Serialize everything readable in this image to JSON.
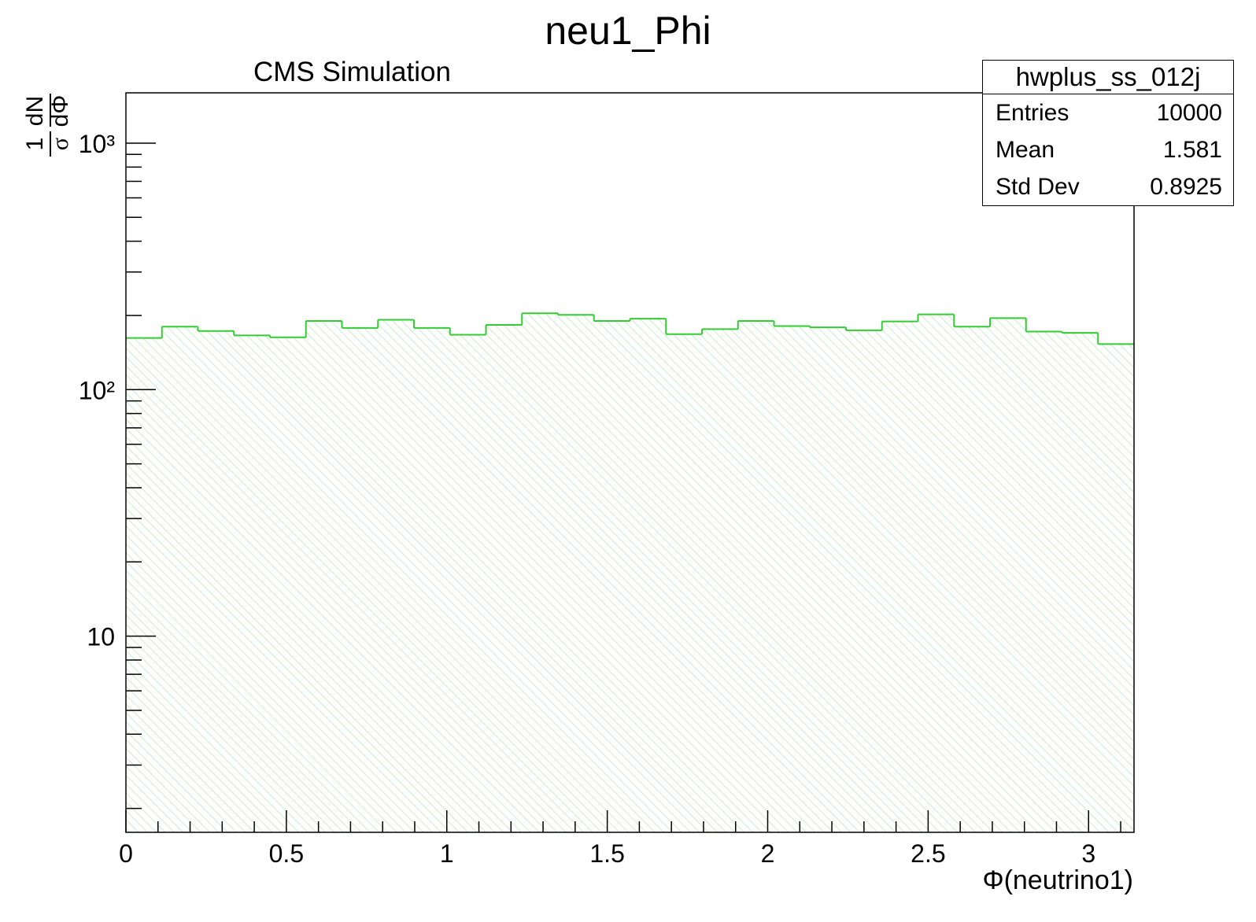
{
  "title": "neu1_Phi",
  "subtitle": "CMS Simulation",
  "stats": {
    "name": "hwplus_ss_012j",
    "rows": [
      {
        "label": "Entries",
        "value": "10000"
      },
      {
        "label": "Mean",
        "value": "1.581"
      },
      {
        "label": "Std Dev",
        "value": "0.8925"
      }
    ]
  },
  "colors": {
    "line": "#33cc33",
    "hatch": "#b8e8b8",
    "axis": "#000000"
  },
  "chart_data": {
    "type": "histogram",
    "xlabel": "Φ(neutrino1)",
    "ylabel": "1/σ dN/dΦ",
    "ylabel_parts": {
      "num_left": "1",
      "den_left": "σ",
      "num_right": "dN",
      "den_right": "dΦ"
    },
    "xlim": [
      0,
      3.1416
    ],
    "ylim": [
      1.6,
      1600
    ],
    "yscale": "log",
    "x_ticks": [
      0,
      0.5,
      1,
      1.5,
      2,
      2.5,
      3
    ],
    "x_tick_labels": [
      "0",
      "0.5",
      "1",
      "1.5",
      "2",
      "2.5",
      "3"
    ],
    "y_major_ticks": [
      10,
      100,
      1000
    ],
    "y_tick_labels": [
      "10",
      "10²",
      "10³"
    ],
    "bin_edges": [
      0,
      0.1122,
      0.2244,
      0.3366,
      0.4488,
      0.561,
      0.6732,
      0.7854,
      0.8976,
      1.0098,
      1.122,
      1.2342,
      1.3464,
      1.4586,
      1.5708,
      1.683,
      1.7952,
      1.9074,
      2.0196,
      2.1318,
      2.244,
      2.3562,
      2.4684,
      2.5806,
      2.6928,
      2.805,
      2.9172,
      3.0294,
      3.1416
    ],
    "values": [
      162,
      180,
      173,
      166,
      163,
      190,
      178,
      192,
      178,
      167,
      183,
      204,
      201,
      190,
      194,
      168,
      176,
      190,
      181,
      179,
      174,
      189,
      202,
      180,
      195,
      172,
      170,
      153
    ]
  }
}
